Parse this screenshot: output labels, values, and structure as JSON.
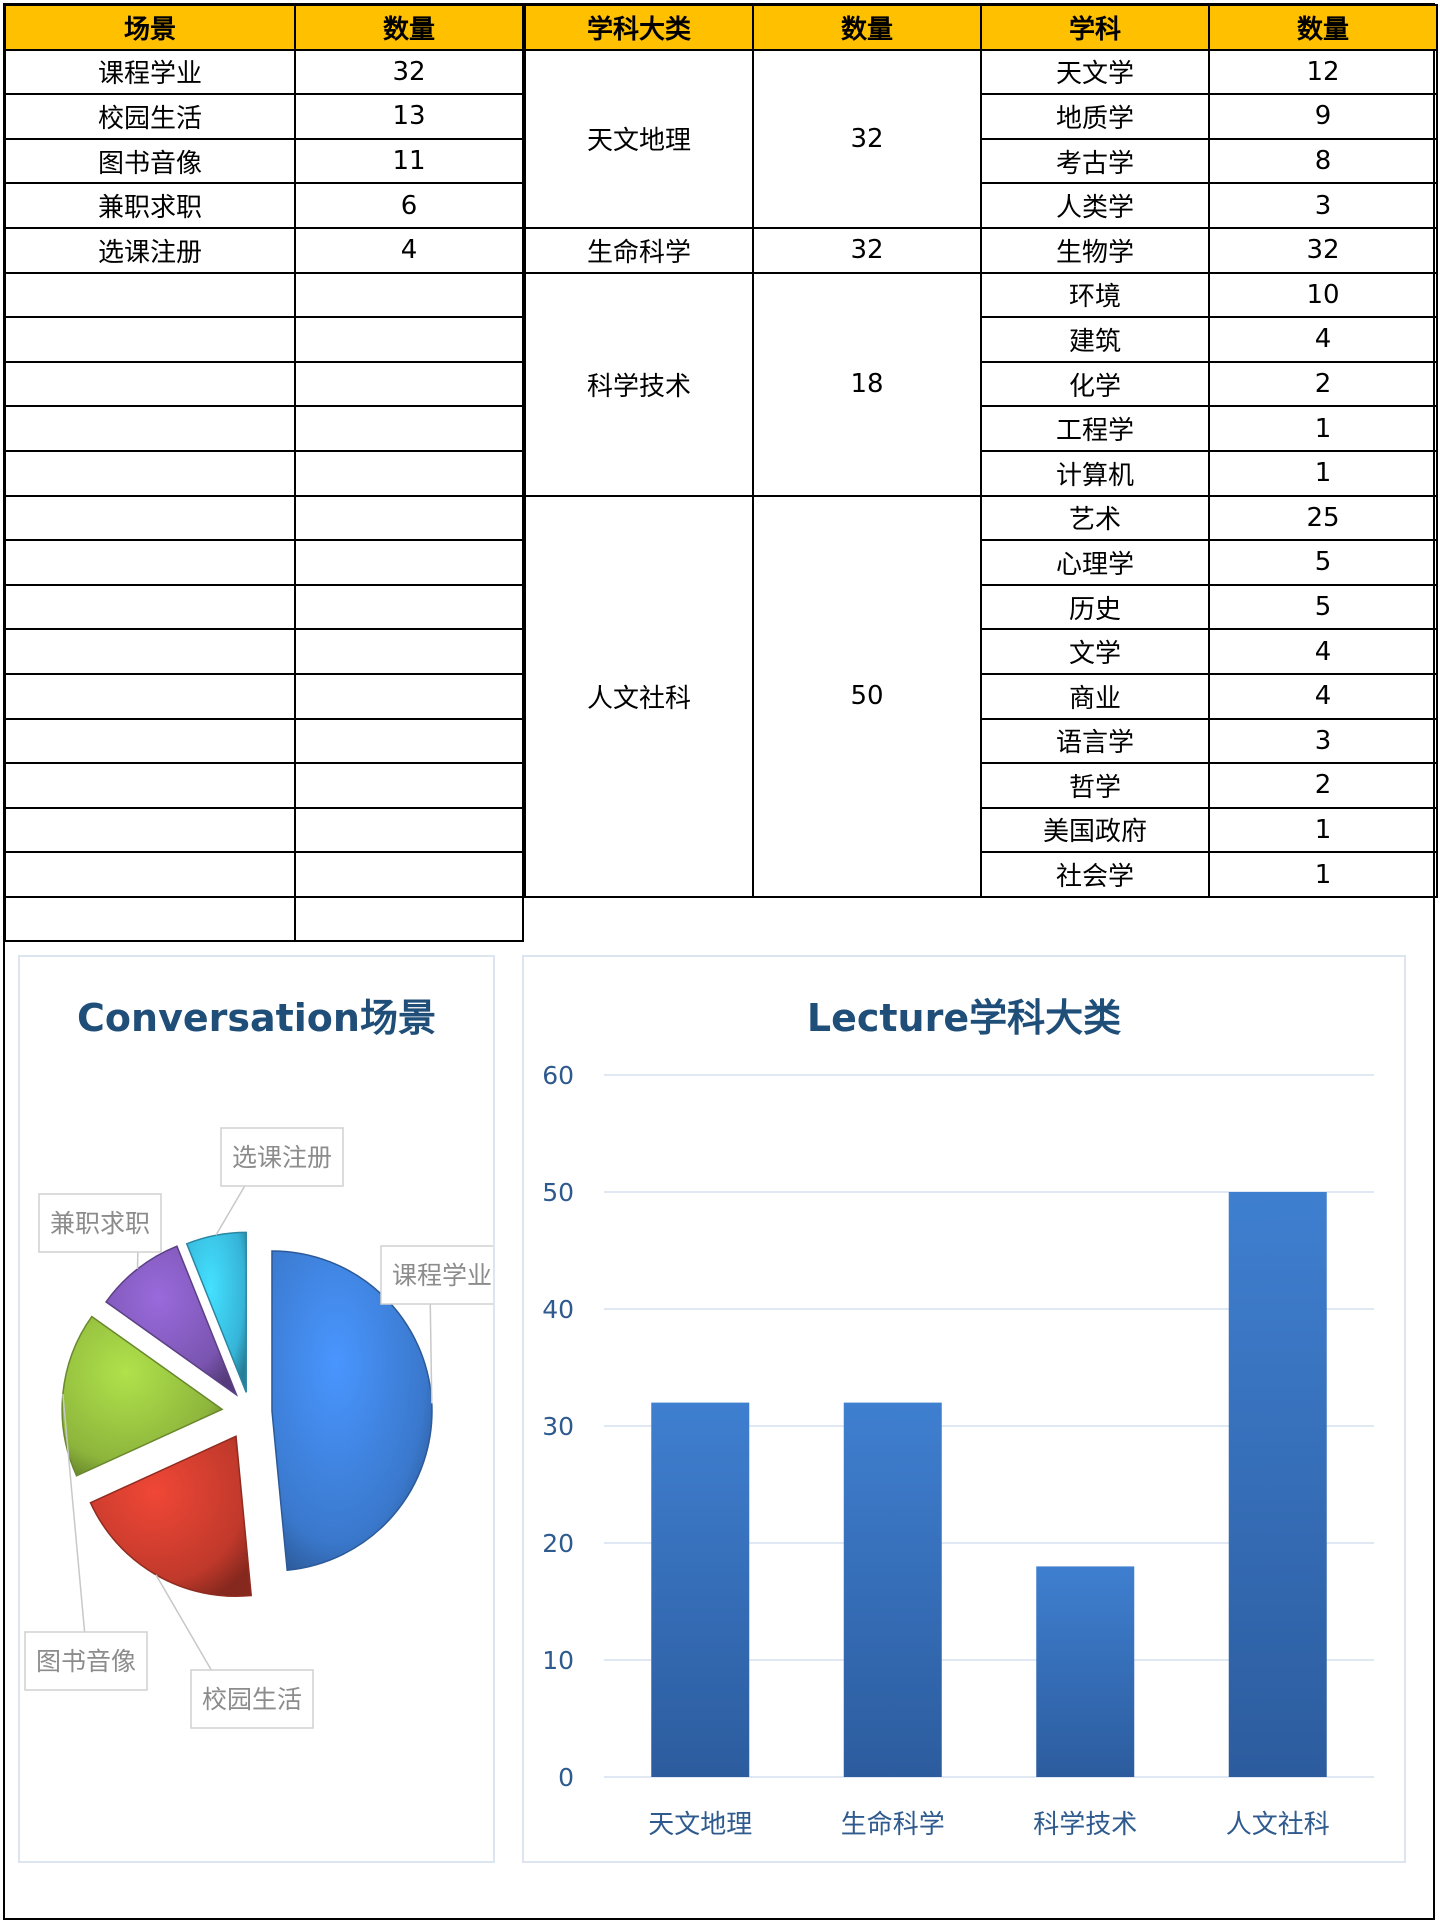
{
  "scene_table": {
    "header": {
      "scene": "场景",
      "count": "数量"
    },
    "rows": [
      {
        "scene": "课程学业",
        "count": "32"
      },
      {
        "scene": "校园生活",
        "count": "13"
      },
      {
        "scene": "图书音像",
        "count": "11"
      },
      {
        "scene": "兼职求职",
        "count": "6"
      },
      {
        "scene": "选课注册",
        "count": "4"
      }
    ],
    "empty_rows": 15
  },
  "subject_table": {
    "header": {
      "category": "学科大类",
      "category_count": "数量",
      "subject": "学科",
      "subject_count": "数量"
    },
    "groups": [
      {
        "category": "天文地理",
        "count": "32",
        "subjects": [
          {
            "name": "天文学",
            "count": "12"
          },
          {
            "name": "地质学",
            "count": "9"
          },
          {
            "name": "考古学",
            "count": "8"
          },
          {
            "name": "人类学",
            "count": "3"
          }
        ]
      },
      {
        "category": "生命科学",
        "count": "32",
        "subjects": [
          {
            "name": "生物学",
            "count": "32"
          }
        ]
      },
      {
        "category": "科学技术",
        "count": "18",
        "subjects": [
          {
            "name": "环境",
            "count": "10"
          },
          {
            "name": "建筑",
            "count": "4"
          },
          {
            "name": "化学",
            "count": "2"
          },
          {
            "name": "工程学",
            "count": "1"
          },
          {
            "name": "计算机",
            "count": "1"
          }
        ]
      },
      {
        "category": "人文社科",
        "count": "50",
        "subjects": [
          {
            "name": "艺术",
            "count": "25"
          },
          {
            "name": "心理学",
            "count": "5"
          },
          {
            "name": "历史",
            "count": "5"
          },
          {
            "name": "文学",
            "count": "4"
          },
          {
            "name": "商业",
            "count": "4"
          },
          {
            "name": "语言学",
            "count": "3"
          },
          {
            "name": "哲学",
            "count": "2"
          },
          {
            "name": "美国政府",
            "count": "1"
          },
          {
            "name": "社会学",
            "count": "1"
          }
        ]
      }
    ]
  },
  "chart_data": [
    {
      "type": "pie",
      "title": "Conversation场景",
      "categories": [
        "课程学业",
        "校园生活",
        "图书音像",
        "兼职求职",
        "选课注册"
      ],
      "values": [
        32,
        13,
        11,
        6,
        4
      ],
      "colors": [
        "#3a78cc",
        "#c0392b",
        "#8db53c",
        "#7a55b0",
        "#36b4d8"
      ],
      "exploded": true,
      "legend": "none"
    },
    {
      "type": "bar",
      "title": "Lecture学科大类",
      "categories": [
        "天文地理",
        "生命科学",
        "科学技术",
        "人文社科"
      ],
      "values": [
        32,
        32,
        18,
        50
      ],
      "ylim": [
        0,
        60
      ],
      "yticks": [
        0,
        10,
        20,
        30,
        40,
        50,
        60
      ],
      "grid": true,
      "color": "#3a78cc",
      "legend": "none"
    }
  ]
}
